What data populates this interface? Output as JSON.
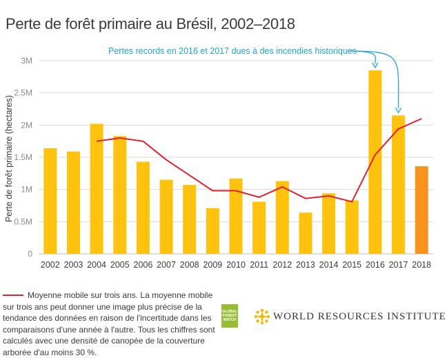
{
  "title": "Perte de forêt primaire au Brésil, 2002–2018",
  "annotation": "Pertes records en 2016 et 2017 dues à des incendies historiques",
  "legend": {
    "text": "Moyenne mobile sur trois ans. La moyenne mobile sur trois ans peut donner une image plus précise de la tendance des données en raison de l'incertitude dans les comparaisons d'une année à l'autre. Tous les chiffres sont calculés avec une densité de canopée de la couverture arborée d'au moins 30 %."
  },
  "logos": {
    "gfw": [
      "GLOBAL",
      "FOREST",
      "WATCH"
    ],
    "wri": "WORLD RESOURCES INSTITUTE"
  },
  "colors": {
    "bar": "#ffc20e",
    "bar_highlight": "#f7941d",
    "line": "#e4202e",
    "annotation": "#1fa3d6",
    "grid": "#d9d9d9"
  },
  "chart_data": {
    "type": "bar",
    "ylabel": "Perte de forêt primaire (hectares)",
    "ylim": [
      0,
      3000000
    ],
    "yticks": [
      {
        "value": 0,
        "label": "0"
      },
      {
        "value": 500000,
        "label": "0.5M"
      },
      {
        "value": 1000000,
        "label": "1M"
      },
      {
        "value": 1500000,
        "label": "1.5M"
      },
      {
        "value": 2000000,
        "label": "2M"
      },
      {
        "value": 2500000,
        "label": "2.5M"
      },
      {
        "value": 3000000,
        "label": "3M"
      }
    ],
    "categories": [
      "2002",
      "2003",
      "2004",
      "2005",
      "2006",
      "2007",
      "2008",
      "2009",
      "2010",
      "2011",
      "2012",
      "2013",
      "2014",
      "2015",
      "2016",
      "2017",
      "2018"
    ],
    "series": [
      {
        "type": "bar",
        "values": [
          1640000,
          1590000,
          2020000,
          1830000,
          1430000,
          1150000,
          1070000,
          710000,
          1170000,
          810000,
          1130000,
          640000,
          940000,
          830000,
          2850000,
          2150000,
          1360000
        ],
        "highlight_index": 16
      },
      {
        "name": "Moyenne mobile sur trois ans",
        "type": "line",
        "values": [
          null,
          null,
          1750000,
          1800000,
          1750000,
          1460000,
          1220000,
          980000,
          980000,
          880000,
          1040000,
          860000,
          900000,
          810000,
          1540000,
          1940000,
          2100000
        ]
      }
    ],
    "annotated_years": [
      "2016",
      "2017"
    ],
    "grid": true
  }
}
